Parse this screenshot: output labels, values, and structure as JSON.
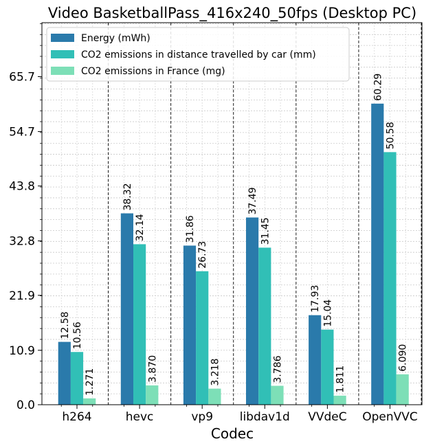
{
  "chart_data": {
    "type": "bar",
    "title": "Video BasketballPass_416x240_50fps (Desktop PC)",
    "xlabel": "Codec",
    "ylabel": "",
    "categories": [
      "h264",
      "hevc",
      "vp9",
      "libdav1d",
      "VVdeC",
      "OpenVVC"
    ],
    "series": [
      {
        "name": "Energy (mWh)",
        "values": [
          12.58,
          38.32,
          31.86,
          37.49,
          17.93,
          60.29
        ],
        "labels": [
          "12.58",
          "38.32",
          "31.86",
          "37.49",
          "17.93",
          "60.29"
        ],
        "color": "#2a7aab"
      },
      {
        "name": "CO2 emissions in distance travelled by car (mm)",
        "values": [
          10.56,
          32.14,
          26.73,
          31.45,
          15.04,
          50.58
        ],
        "labels": [
          "10.56",
          "32.14",
          "26.73",
          "31.45",
          "15.04",
          "50.58"
        ],
        "color": "#31bfb6"
      },
      {
        "name": "CO2 emissions in France (mg)",
        "values": [
          1.271,
          3.87,
          3.218,
          3.786,
          1.811,
          6.09
        ],
        "labels": [
          "1.271",
          "3.870",
          "3.218",
          "3.786",
          "1.811",
          "6.090"
        ],
        "color": "#7ddfb7"
      }
    ],
    "yticks": [
      0.0,
      10.9,
      21.9,
      32.8,
      43.8,
      54.7,
      65.7
    ],
    "ytick_labels": [
      "0.0",
      "10.9",
      "21.9",
      "32.8",
      "43.8",
      "54.7",
      "65.7"
    ],
    "ylim": [
      0,
      76.5
    ],
    "grid": true,
    "legend_position": "top-left"
  }
}
